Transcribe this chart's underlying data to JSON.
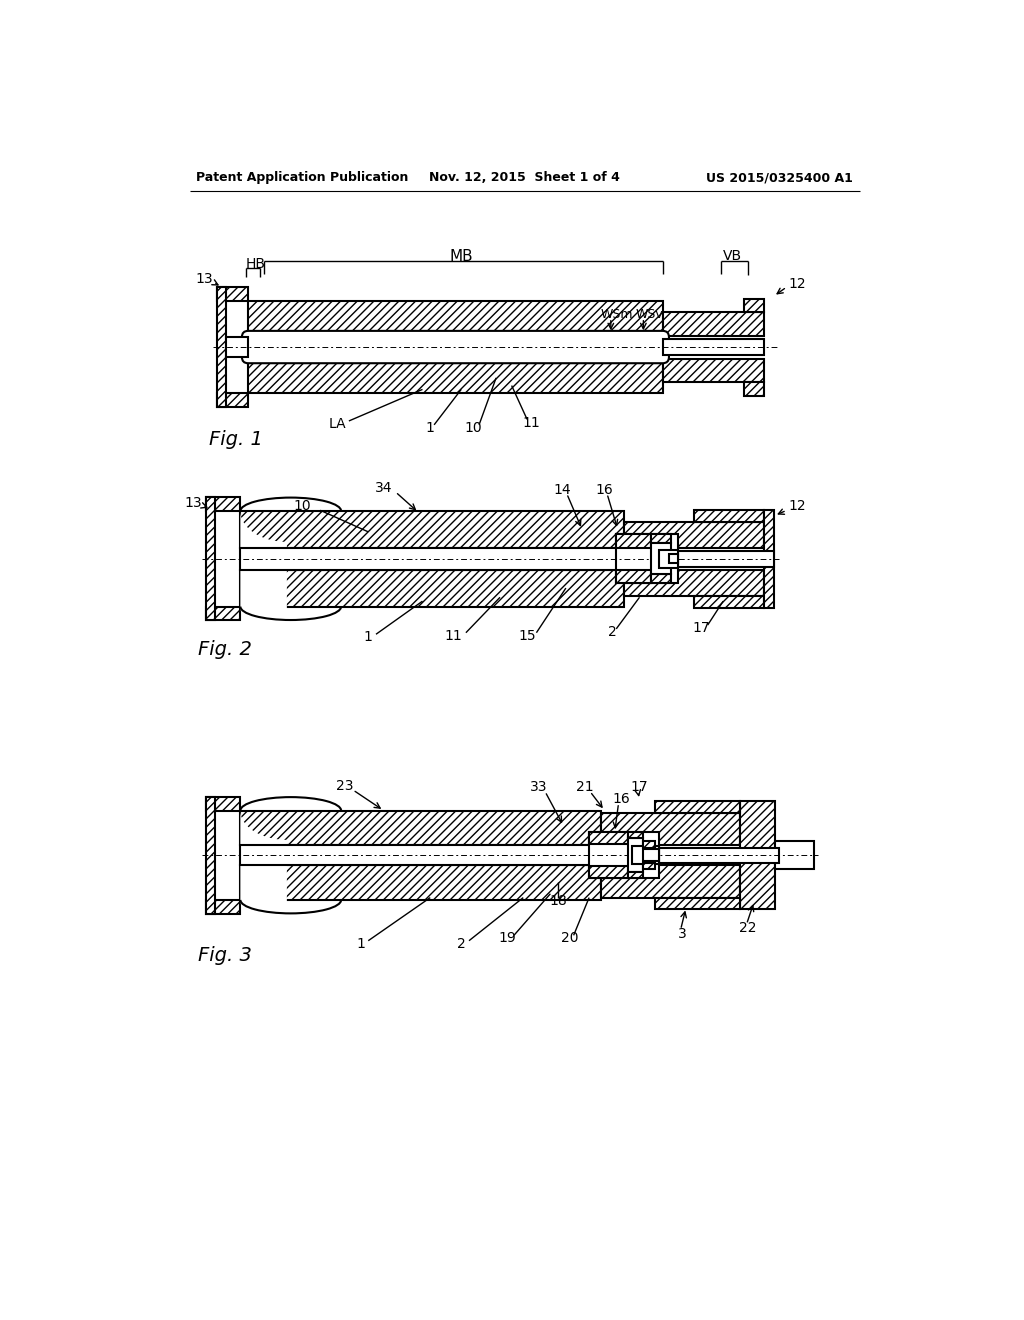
{
  "background_color": "#ffffff",
  "line_color": "#000000",
  "header_left": "Patent Application Publication",
  "header_center": "Nov. 12, 2015  Sheet 1 of 4",
  "header_right": "US 2015/0325400 A1",
  "fig1_label": "Fig. 1",
  "fig2_label": "Fig. 2",
  "fig3_label": "Fig. 3"
}
